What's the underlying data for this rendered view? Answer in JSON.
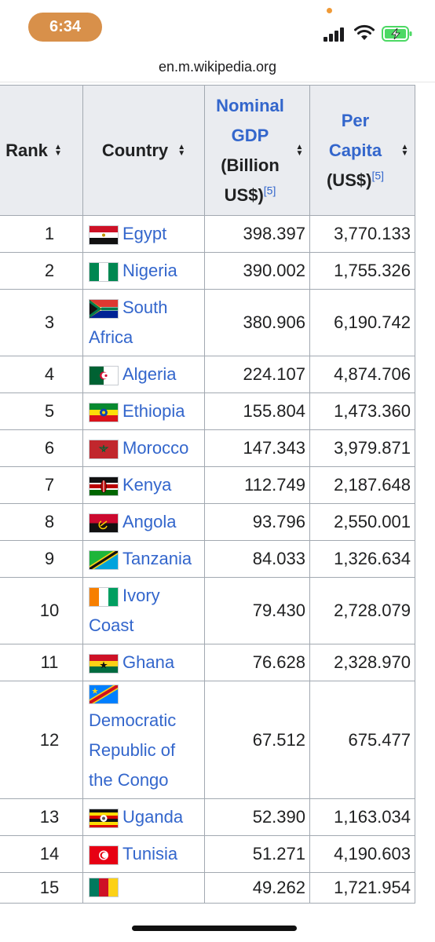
{
  "status": {
    "time": "6:34"
  },
  "browser": {
    "url": "en.m.wikipedia.org"
  },
  "table": {
    "headers": {
      "rank": "Rank",
      "country": "Country",
      "gdp_line1": "Nominal",
      "gdp_line2": "GDP",
      "gdp_line3": "(Billion",
      "gdp_line4": "US$)",
      "gdp_ref": "[5]",
      "pc_line1": "Per",
      "pc_line2": "Capita",
      "pc_line3": "(US$)",
      "pc_ref": "[5]"
    },
    "rows": [
      {
        "rank": "1",
        "country": "Egypt",
        "gdp": "398.397",
        "per_capita": "3,770.133",
        "flag": "egypt-flag"
      },
      {
        "rank": "2",
        "country": "Nigeria",
        "gdp": "390.002",
        "per_capita": "1,755.326",
        "flag": "nigeria-flag"
      },
      {
        "rank": "3",
        "country": "South Africa",
        "gdp": "380.906",
        "per_capita": "6,190.742",
        "flag": "south-africa-flag"
      },
      {
        "rank": "4",
        "country": "Algeria",
        "gdp": "224.107",
        "per_capita": "4,874.706",
        "flag": "algeria-flag"
      },
      {
        "rank": "5",
        "country": "Ethiopia",
        "gdp": "155.804",
        "per_capita": "1,473.360",
        "flag": "ethiopia-flag"
      },
      {
        "rank": "6",
        "country": "Morocco",
        "gdp": "147.343",
        "per_capita": "3,979.871",
        "flag": "morocco-flag"
      },
      {
        "rank": "7",
        "country": "Kenya",
        "gdp": "112.749",
        "per_capita": "2,187.648",
        "flag": "kenya-flag"
      },
      {
        "rank": "8",
        "country": "Angola",
        "gdp": "93.796",
        "per_capita": "2,550.001",
        "flag": "angola-flag"
      },
      {
        "rank": "9",
        "country": "Tanzania",
        "gdp": "84.033",
        "per_capita": "1,326.634",
        "flag": "tanzania-flag"
      },
      {
        "rank": "10",
        "country": "Ivory Coast",
        "gdp": "79.430",
        "per_capita": "2,728.079",
        "flag": "ivory-coast-flag"
      },
      {
        "rank": "11",
        "country": "Ghana",
        "gdp": "76.628",
        "per_capita": "2,328.970",
        "flag": "ghana-flag"
      },
      {
        "rank": "12",
        "country": "Democratic Republic of the Congo",
        "gdp": "67.512",
        "per_capita": "675.477",
        "flag": "dr-congo-flag"
      },
      {
        "rank": "13",
        "country": "Uganda",
        "gdp": "52.390",
        "per_capita": "1,163.034",
        "flag": "uganda-flag"
      },
      {
        "rank": "14",
        "country": "Tunisia",
        "gdp": "51.271",
        "per_capita": "4,190.603",
        "flag": "tunisia-flag"
      },
      {
        "rank": "15",
        "country": "",
        "gdp": "49.262",
        "per_capita": "1,721.954",
        "flag": "cameroon-flag"
      }
    ]
  }
}
